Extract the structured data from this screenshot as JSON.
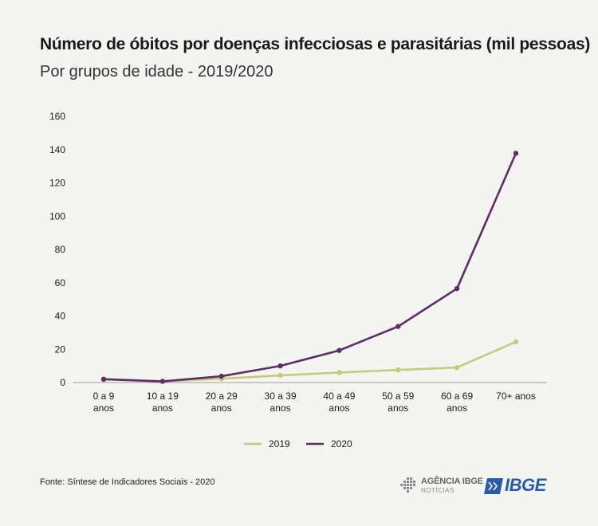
{
  "header": {
    "title": "Número de óbitos por doenças infecciosas e parasitárias (mil pessoas)",
    "subtitle": "Por grupos de idade - 2019/2020"
  },
  "footer": {
    "source": "Fonte: Síntese de Indicadores Sociais - 2020",
    "agencia_logo_main": "AGÊNCIA IBGE",
    "agencia_logo_sub": "NOTÍCIAS",
    "ibge_logo": "IBGE"
  },
  "colors": {
    "series_2019": "#c6cb7c",
    "series_2020": "#5e2d63",
    "ibge_blue": "#2b5aa7"
  },
  "chart_data": {
    "type": "line",
    "title": "Número de óbitos por doenças infecciosas e parasitárias (mil pessoas)",
    "subtitle": "Por grupos de idade - 2019/2020",
    "categories": [
      [
        "0 a 9",
        "anos"
      ],
      [
        "10 a 19",
        "anos"
      ],
      [
        "20 a 29",
        "anos"
      ],
      [
        "30 a 39",
        "anos"
      ],
      [
        "40 a 49",
        "anos"
      ],
      [
        "50 a 59",
        "anos"
      ],
      [
        "60 a 69",
        "anos"
      ],
      [
        "70+ anos"
      ]
    ],
    "series": [
      {
        "name": "2019",
        "color": "#c6cb7c",
        "values": [
          2.0,
          0.8,
          2.3,
          4.3,
          6.0,
          7.6,
          9.0,
          24.5
        ]
      },
      {
        "name": "2020",
        "color": "#5e2d63",
        "values": [
          2.0,
          0.7,
          3.8,
          10.0,
          19.3,
          33.7,
          56.5,
          137.8
        ]
      }
    ],
    "yticks": [
      0,
      20,
      40,
      60,
      80,
      100,
      120,
      140,
      160
    ],
    "ylim": [
      0,
      160
    ],
    "grid": false,
    "legend": "bottom-center"
  }
}
